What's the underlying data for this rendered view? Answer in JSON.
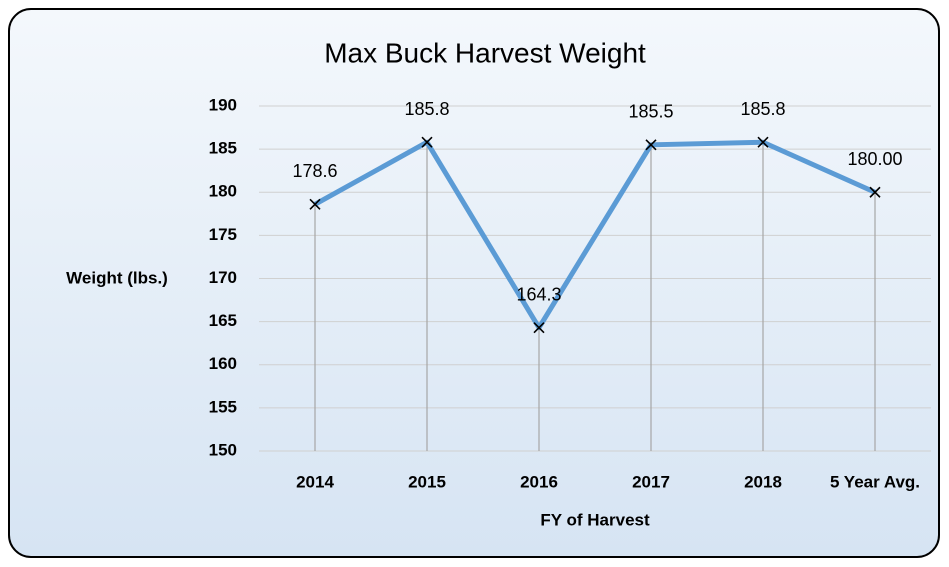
{
  "chart_data": {
    "type": "line",
    "title": "Max Buck Harvest Weight",
    "x_label": "FY of Harvest",
    "y_label": "Weight (lbs.)",
    "categories": [
      "2014",
      "2015",
      "2016",
      "2017",
      "2018",
      "5 Year Avg."
    ],
    "values": [
      178.6,
      185.8,
      164.3,
      185.5,
      185.8,
      180.0
    ],
    "value_labels": [
      "178.6",
      "185.8",
      "164.3",
      "185.5",
      "185.8",
      "180.00"
    ],
    "color": "#5b9bd5",
    "ylim": [
      150,
      190
    ],
    "yticks": [
      150,
      155,
      160,
      165,
      170,
      175,
      180,
      185,
      190
    ],
    "grid": true
  }
}
